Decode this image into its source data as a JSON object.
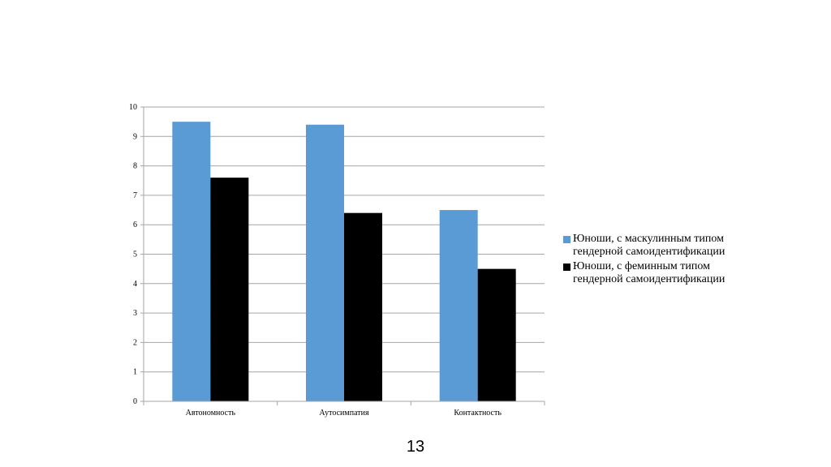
{
  "chart_data": {
    "type": "bar",
    "categories": [
      "Автономность",
      "Аутосимпатия",
      "Контактность"
    ],
    "series": [
      {
        "name": "Юноши, с маскулинным типом гендерной самоидентификации",
        "values": [
          9.5,
          9.4,
          6.5
        ],
        "color": "#5b9bd5"
      },
      {
        "name": "Юноши, с феминным типом гендерной самоидентификации",
        "values": [
          7.6,
          6.4,
          4.5
        ],
        "color": "#000000"
      }
    ],
    "ylim": [
      0,
      10
    ],
    "yticks": [
      "0",
      "1",
      "2",
      "3",
      "4",
      "5",
      "6",
      "7",
      "8",
      "9",
      "10"
    ],
    "grid": true,
    "legend_position": "right",
    "gridline_color": "#a6a6a6"
  },
  "page_number": "13"
}
